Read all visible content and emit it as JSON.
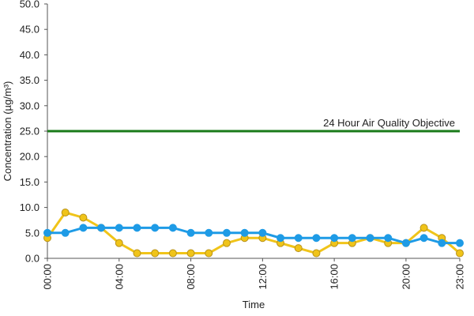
{
  "chart_data": {
    "type": "line",
    "y_label": "Concentration (µg/m³)",
    "x_label": "Time",
    "categories": [
      "00:00",
      null,
      null,
      null,
      "04:00",
      null,
      null,
      null,
      "08:00",
      null,
      null,
      null,
      "12:00",
      null,
      null,
      null,
      "16:00",
      null,
      null,
      null,
      "20:00",
      null,
      null,
      "23:00"
    ],
    "series": [
      {
        "color": "#f0c419",
        "stroke": "#b8921a",
        "values": [
          4,
          9,
          8,
          6,
          3,
          1,
          1,
          1,
          1,
          1,
          3,
          4,
          4,
          3,
          2,
          1,
          3,
          3,
          4,
          3,
          3,
          6,
          4,
          1
        ]
      },
      {
        "color": "#1e9be6",
        "stroke": "#1e9be6",
        "values": [
          5,
          5,
          6,
          6,
          6,
          6,
          6,
          6,
          5,
          5,
          5,
          5,
          5,
          4,
          4,
          4,
          4,
          4,
          4,
          4,
          3,
          4,
          3,
          3
        ]
      }
    ],
    "reference_line": {
      "value": 25,
      "label": "24 Hour Air Quality Objective",
      "color": "#1a7a1a"
    },
    "ylim": [
      0,
      50
    ],
    "yticks": [
      {
        "value": 0,
        "label": "0.0"
      },
      {
        "value": 5,
        "label": "5.0"
      },
      {
        "value": 10,
        "label": "10.0"
      },
      {
        "value": 15,
        "label": "15.0"
      },
      {
        "value": 20,
        "label": "20.0"
      },
      {
        "value": 25,
        "label": "25.0"
      },
      {
        "value": 30,
        "label": "30.0"
      },
      {
        "value": 35,
        "label": "35.0"
      },
      {
        "value": 40,
        "label": "40.0"
      },
      {
        "value": 45,
        "label": "45.0"
      },
      {
        "value": 50,
        "label": "50.0"
      }
    ],
    "grid": false
  }
}
